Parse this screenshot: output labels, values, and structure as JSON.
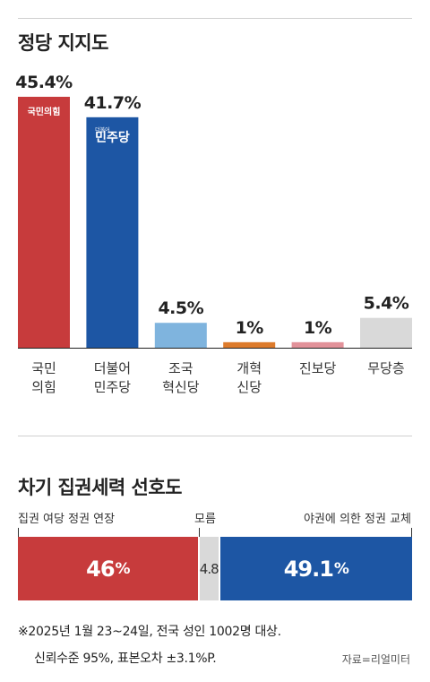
{
  "chart_data": [
    {
      "type": "bar",
      "title": "정당 지지도",
      "categories": [
        "국민\n의힘",
        "더불어\n민주당",
        "조국\n혁신당",
        "개혁\n신당",
        "진보당",
        "무당층"
      ],
      "values": [
        45.4,
        41.7,
        4.5,
        1,
        1,
        5.4
      ],
      "value_labels": [
        "45.4%",
        "41.7%",
        "4.5%",
        "1%",
        "1%",
        "5.4%"
      ],
      "colors": [
        "#c73b3c",
        "#1d56a4",
        "#7fb4de",
        "#dd7b2c",
        "#e2929a",
        "#d9d9d9"
      ],
      "logos": {
        "0": "국민의힘",
        "1": "민주당"
      },
      "logo_small": "더불어",
      "ylim": [
        0,
        45.4
      ]
    },
    {
      "type": "bar",
      "orientation": "stacked-horizontal",
      "title": "차기 집권세력 선호도",
      "categories": [
        "집권 여당 정권 연장",
        "모름",
        "야권에 의한 정권 교체"
      ],
      "values": [
        46,
        4.8,
        49.1
      ],
      "value_labels": [
        {
          "num": "46",
          "unit": "%"
        },
        {
          "num": "4.8",
          "unit": ""
        },
        {
          "num": "49.1",
          "unit": "%"
        }
      ],
      "colors": [
        "#c73b3c",
        "#d9d9d9",
        "#1d56a4"
      ]
    }
  ],
  "notes": {
    "line1": "※2025년 1월 23~24일, 전국 성인 1002명 대상.",
    "line2": "신뢰수준 95%, 표본오차 ±3.1%P.",
    "source": "자료=리얼미터"
  }
}
